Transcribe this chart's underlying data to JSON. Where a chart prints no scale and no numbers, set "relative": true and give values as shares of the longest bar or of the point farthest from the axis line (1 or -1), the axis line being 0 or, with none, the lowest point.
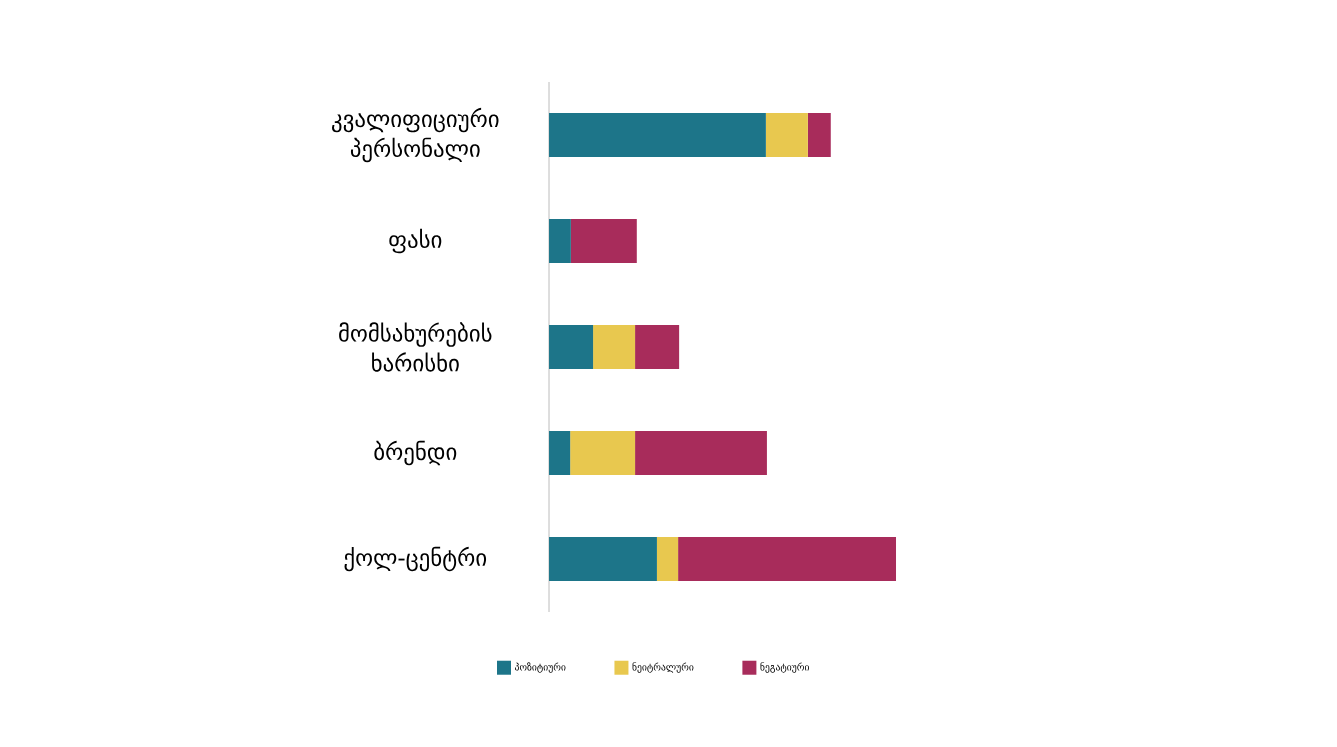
{
  "chart_data": {
    "type": "bar",
    "orientation": "horizontal",
    "stacked": true,
    "relative": true,
    "legend": "bottom",
    "categories": [
      "კვალიფიციური პერსონალი",
      "ფასი",
      "მომსახურების ხარისხი",
      "ბრენდი",
      "ქოლ-ცენტრი"
    ],
    "series": [
      {
        "name": "პოზიტიური",
        "color": "#1d7589",
        "values": [
          0.625,
          0.063,
          0.127,
          0.061,
          0.311
        ]
      },
      {
        "name": "ნეიტრალური",
        "color": "#e8c84f",
        "values": [
          0.121,
          0,
          0.121,
          0.187,
          0.061
        ]
      },
      {
        "name": "ნეგატიური",
        "color": "#a82c5b",
        "values": [
          0.066,
          0.19,
          0.127,
          0.38,
          0.628
        ]
      }
    ]
  }
}
